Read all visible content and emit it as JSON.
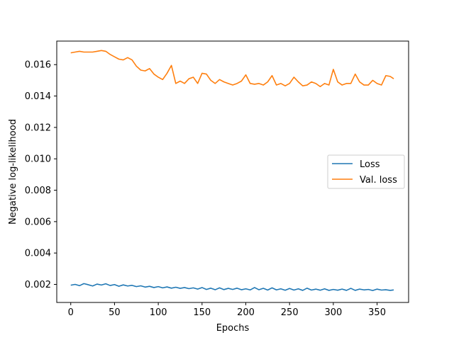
{
  "chart_data": {
    "type": "line",
    "title": "",
    "xlabel": "Epochs",
    "ylabel": "Negative log-likelihood",
    "xlim": [
      -16,
      386
    ],
    "ylim": [
      0.00085,
      0.0175
    ],
    "xticks": [
      0,
      50,
      100,
      150,
      200,
      250,
      300,
      350
    ],
    "xtick_labels": [
      "0",
      "50",
      "100",
      "150",
      "200",
      "250",
      "300",
      "350"
    ],
    "yticks": [
      0.002,
      0.004,
      0.006,
      0.008,
      0.01,
      0.012,
      0.014,
      0.016
    ],
    "ytick_labels": [
      "0.002",
      "0.004",
      "0.006",
      "0.008",
      "0.010",
      "0.012",
      "0.014",
      "0.016"
    ],
    "grid": false,
    "legend_position": "center-right",
    "series": [
      {
        "name": "Loss",
        "color": "#1f77b4",
        "x": [
          0,
          5,
          10,
          15,
          20,
          25,
          30,
          35,
          40,
          45,
          50,
          55,
          60,
          65,
          70,
          75,
          80,
          85,
          90,
          95,
          100,
          105,
          110,
          115,
          120,
          125,
          130,
          135,
          140,
          145,
          150,
          155,
          160,
          165,
          170,
          175,
          180,
          185,
          190,
          195,
          200,
          205,
          210,
          215,
          220,
          225,
          230,
          235,
          240,
          245,
          250,
          255,
          260,
          265,
          270,
          275,
          280,
          285,
          290,
          295,
          300,
          305,
          310,
          315,
          320,
          325,
          330,
          335,
          340,
          345,
          350,
          355,
          360,
          365,
          369
        ],
        "y": [
          0.00195,
          0.002,
          0.00192,
          0.00205,
          0.00198,
          0.0019,
          0.00202,
          0.00196,
          0.00204,
          0.00193,
          0.00199,
          0.00188,
          0.00197,
          0.0019,
          0.00194,
          0.00186,
          0.00191,
          0.00183,
          0.00188,
          0.0018,
          0.00186,
          0.00178,
          0.00184,
          0.00176,
          0.00182,
          0.00175,
          0.0018,
          0.00173,
          0.00178,
          0.0017,
          0.0018,
          0.00168,
          0.00176,
          0.00166,
          0.00178,
          0.00167,
          0.00175,
          0.00168,
          0.00176,
          0.00166,
          0.00172,
          0.00165,
          0.0018,
          0.00166,
          0.00175,
          0.00164,
          0.00178,
          0.00165,
          0.00172,
          0.00163,
          0.00174,
          0.00164,
          0.00172,
          0.00162,
          0.00176,
          0.00164,
          0.0017,
          0.00163,
          0.00172,
          0.00162,
          0.00168,
          0.00163,
          0.0017,
          0.00162,
          0.00175,
          0.00162,
          0.0017,
          0.00165,
          0.00168,
          0.00161,
          0.0017,
          0.00164,
          0.00166,
          0.00162,
          0.00165
        ]
      },
      {
        "name": "Val. loss",
        "color": "#ff7f0e",
        "x": [
          0,
          5,
          10,
          15,
          20,
          25,
          30,
          35,
          40,
          45,
          50,
          55,
          60,
          65,
          70,
          75,
          80,
          85,
          90,
          95,
          100,
          105,
          110,
          115,
          120,
          125,
          130,
          135,
          140,
          145,
          150,
          155,
          160,
          165,
          170,
          175,
          180,
          185,
          190,
          195,
          200,
          205,
          210,
          215,
          220,
          225,
          230,
          235,
          240,
          245,
          250,
          255,
          260,
          265,
          270,
          275,
          280,
          285,
          290,
          295,
          300,
          305,
          310,
          315,
          320,
          325,
          330,
          335,
          340,
          345,
          350,
          355,
          360,
          365,
          369
        ],
        "y": [
          0.01675,
          0.0168,
          0.01685,
          0.0168,
          0.0168,
          0.0168,
          0.01685,
          0.0169,
          0.01685,
          0.01665,
          0.0165,
          0.01635,
          0.0163,
          0.01645,
          0.0163,
          0.0159,
          0.01565,
          0.0156,
          0.01575,
          0.0154,
          0.0152,
          0.01505,
          0.01545,
          0.01595,
          0.0148,
          0.01495,
          0.0148,
          0.0151,
          0.0152,
          0.0148,
          0.01545,
          0.0154,
          0.015,
          0.0148,
          0.01505,
          0.0149,
          0.0148,
          0.0147,
          0.0148,
          0.01495,
          0.01535,
          0.0148,
          0.01475,
          0.0148,
          0.0147,
          0.0149,
          0.0153,
          0.0147,
          0.0148,
          0.01465,
          0.0148,
          0.0152,
          0.0149,
          0.01465,
          0.0147,
          0.0149,
          0.0148,
          0.0146,
          0.0148,
          0.0147,
          0.0157,
          0.0149,
          0.0147,
          0.0148,
          0.0148,
          0.0154,
          0.0149,
          0.0147,
          0.0147,
          0.015,
          0.0148,
          0.0147,
          0.0153,
          0.01525,
          0.0151
        ]
      }
    ]
  }
}
